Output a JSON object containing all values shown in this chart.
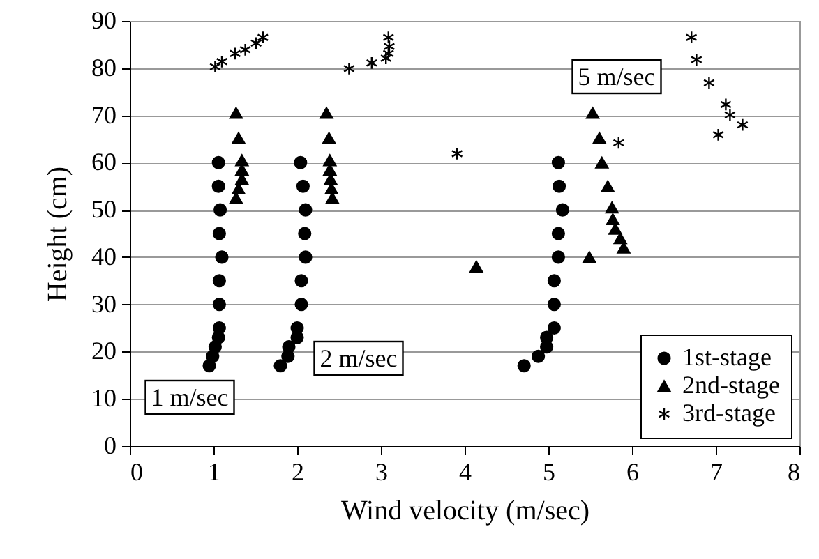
{
  "chart_data": {
    "type": "scatter",
    "xlabel": "Wind velocity (m/sec)",
    "ylabel": "Height (cm)",
    "xlim": [
      0,
      8
    ],
    "xticks": [
      0,
      1,
      2,
      3,
      4,
      5,
      6,
      7,
      8
    ],
    "ylim": [
      0,
      90
    ],
    "yticks": [
      0,
      10,
      20,
      30,
      40,
      50,
      60,
      70,
      80,
      90
    ],
    "grid": "y",
    "legend": "bottom right",
    "annotations": [
      "1 m/sec",
      "2 m/sec",
      "5 m/sec"
    ],
    "series": [
      {
        "name": "1st-stage",
        "color": "#000000",
        "marker": "circle",
        "x": [
          0.95,
          0.99,
          1.02,
          1.06,
          1.07,
          1.07,
          1.07,
          1.1,
          1.07,
          1.08,
          1.06,
          1.06,
          1.8,
          1.89,
          1.9,
          2.0,
          2.0,
          2.05,
          2.05,
          2.1,
          2.09,
          2.1,
          2.07,
          2.04,
          4.71,
          4.88,
          4.98,
          4.98,
          5.07,
          5.07,
          5.07,
          5.12,
          5.12,
          5.17,
          5.13,
          5.12
        ],
        "values": [
          17,
          19,
          21,
          23,
          25,
          30,
          35,
          40,
          45,
          50,
          55,
          60,
          17,
          19,
          21,
          23,
          25,
          30,
          35,
          40,
          45,
          50,
          55,
          60,
          17,
          19,
          21,
          23,
          25,
          30,
          35,
          40,
          45,
          50,
          55,
          60
        ]
      },
      {
        "name": "2nd-stage",
        "color": "#000000",
        "marker": "triangle",
        "x": [
          1.27,
          1.3,
          1.34,
          1.34,
          1.34,
          1.3,
          1.27,
          2.35,
          2.38,
          2.39,
          2.39,
          2.4,
          2.41,
          2.42,
          4.14,
          5.49,
          5.53,
          5.61,
          5.64,
          5.71,
          5.76,
          5.77,
          5.8,
          5.86,
          5.9
        ],
        "values": [
          70.5,
          65.2,
          60.5,
          58.5,
          56.5,
          54.5,
          52.5,
          70.5,
          65.2,
          60.5,
          58.5,
          56.5,
          54.5,
          52.5,
          38,
          40,
          70.5,
          65.2,
          60,
          55,
          50.5,
          48,
          46,
          44,
          42
        ]
      },
      {
        "name": "3rd-stage",
        "color": "#000000",
        "marker": "cross",
        "x": [
          1.02,
          1.1,
          1.26,
          1.38,
          1.51,
          1.59,
          2.62,
          2.89,
          3.06,
          3.09,
          3.1,
          3.09,
          3.91,
          5.84,
          6.71,
          6.77,
          6.92,
          7.12,
          7.17,
          7.32,
          7.03
        ],
        "values": [
          80.3,
          81.4,
          83.1,
          83.9,
          85.3,
          86.5,
          79.9,
          81.1,
          82.1,
          83.1,
          84.6,
          86.5,
          61.9,
          64.2,
          86.5,
          81.8,
          76.9,
          72.3,
          70.1,
          68,
          65.9
        ]
      }
    ]
  }
}
